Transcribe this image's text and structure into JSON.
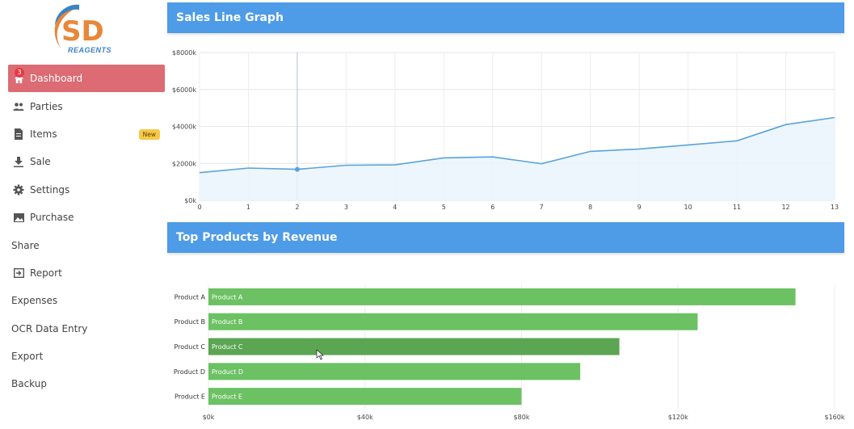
{
  "app": {
    "logo_letters": "SD",
    "logo_subtitle": "REAGENTS"
  },
  "sidebar": {
    "items": [
      {
        "label": "Dashboard",
        "icon": "home-icon",
        "active": true,
        "badge": "3"
      },
      {
        "label": "Parties",
        "icon": "users-icon"
      },
      {
        "label": "Items",
        "icon": "file-icon",
        "tag": "New"
      },
      {
        "label": "Sale",
        "icon": "download-icon"
      },
      {
        "label": "Settings",
        "icon": "gear-icon"
      },
      {
        "label": "Purchase",
        "icon": "image-icon"
      },
      {
        "label": "Share"
      },
      {
        "label": "Report",
        "icon": "report-icon"
      },
      {
        "label": "Expenses"
      },
      {
        "label": "OCR Data Entry"
      },
      {
        "label": "Export"
      },
      {
        "label": "Backup"
      }
    ]
  },
  "colors": {
    "accent": "#4e9be8",
    "active_nav": "#dc6b73",
    "bar": "#6cc163",
    "bar_highlight": "#5ba553",
    "line": "#5aa3dc",
    "area": "#e9f5fc"
  },
  "line_card": {
    "title": "Sales Line Graph"
  },
  "bar_card": {
    "title": "Top Products by Revenue"
  },
  "chart_data": [
    {
      "type": "line",
      "title": "Sales Line Graph",
      "x": [
        0,
        1,
        2,
        3,
        4,
        5,
        6,
        7,
        8,
        9,
        10,
        11,
        12,
        13
      ],
      "values": [
        1500,
        1750,
        1680,
        1900,
        1920,
        2300,
        2350,
        1980,
        2650,
        2780,
        3000,
        3220,
        4100,
        4480
      ],
      "ylim": [
        0,
        8000
      ],
      "yticks": [
        "$0k",
        "$2000k",
        "$4000k",
        "$6000k",
        "$8000k"
      ],
      "ytick_values": [
        0,
        2000,
        4000,
        6000,
        8000
      ],
      "highlight_index": 2
    },
    {
      "type": "bar",
      "title": "Top Products by Revenue",
      "categories": [
        "Product A",
        "Product B",
        "Product C",
        "Product D",
        "Product E"
      ],
      "values": [
        150000,
        125000,
        105000,
        95000,
        80000
      ],
      "xlim": [
        0,
        160000
      ],
      "xticks": [
        "$0k",
        "$40k",
        "$80k",
        "$120k",
        "$160k"
      ],
      "xtick_values": [
        0,
        40000,
        80000,
        120000,
        160000
      ],
      "highlight_index": 2
    }
  ]
}
